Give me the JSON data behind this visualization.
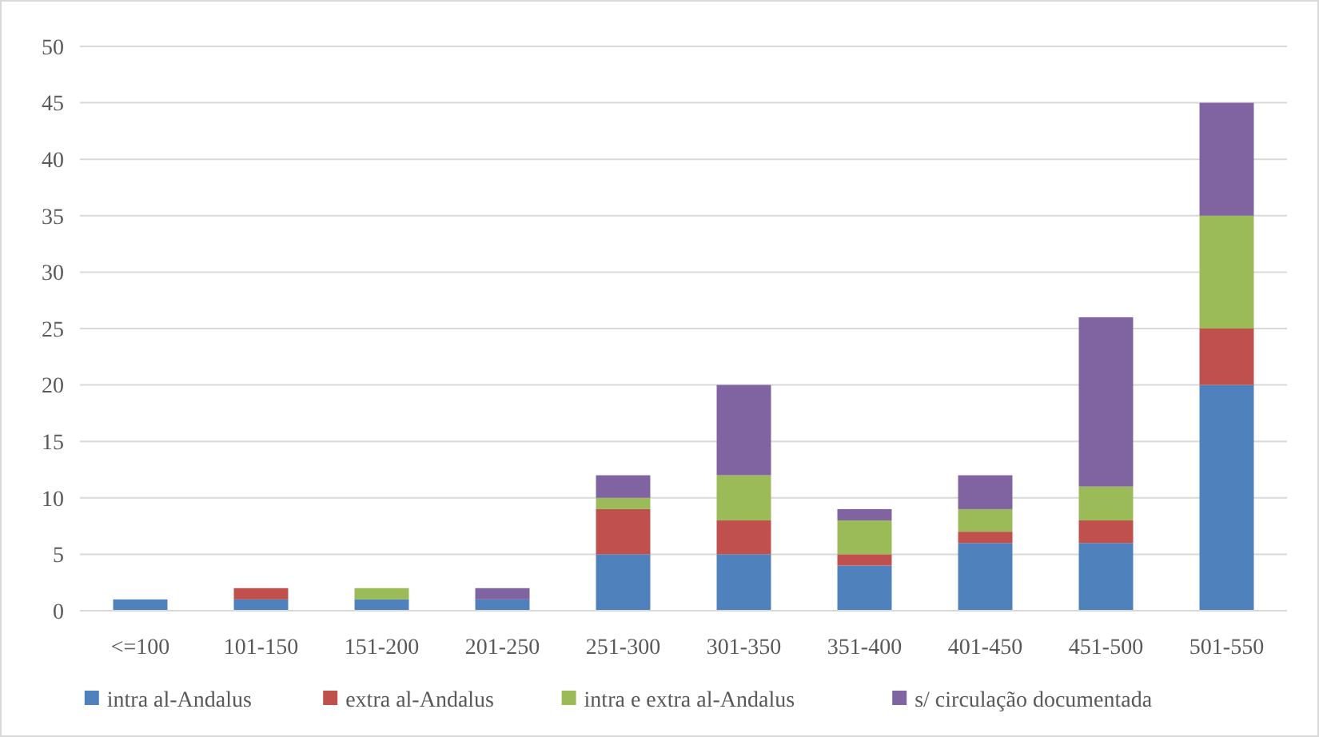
{
  "chart_data": {
    "type": "bar",
    "stacked": true,
    "categories": [
      "<=100",
      "101-150",
      "151-200",
      "201-250",
      "251-300",
      "301-350",
      "351-400",
      "401-450",
      "451-500",
      "501-550"
    ],
    "series": [
      {
        "name": "intra al-Andalus",
        "color": "#4f81bd",
        "values": [
          1,
          1,
          1,
          1,
          5,
          5,
          4,
          6,
          6,
          20
        ]
      },
      {
        "name": "extra al-Andalus",
        "color": "#c0504d",
        "values": [
          0,
          1,
          0,
          0,
          4,
          3,
          1,
          1,
          2,
          5
        ]
      },
      {
        "name": "intra e extra al-Andalus",
        "color": "#9bbb59",
        "values": [
          0,
          0,
          1,
          0,
          1,
          4,
          3,
          2,
          3,
          10
        ]
      },
      {
        "name": "s/ circulação documentada",
        "color": "#8064a2",
        "values": [
          0,
          0,
          0,
          1,
          2,
          8,
          1,
          3,
          15,
          10
        ]
      }
    ],
    "ylim": [
      0,
      50
    ],
    "yticks": [
      0,
      5,
      10,
      15,
      20,
      25,
      30,
      35,
      40,
      45,
      50
    ],
    "grid": "y",
    "legend": "bottom"
  }
}
